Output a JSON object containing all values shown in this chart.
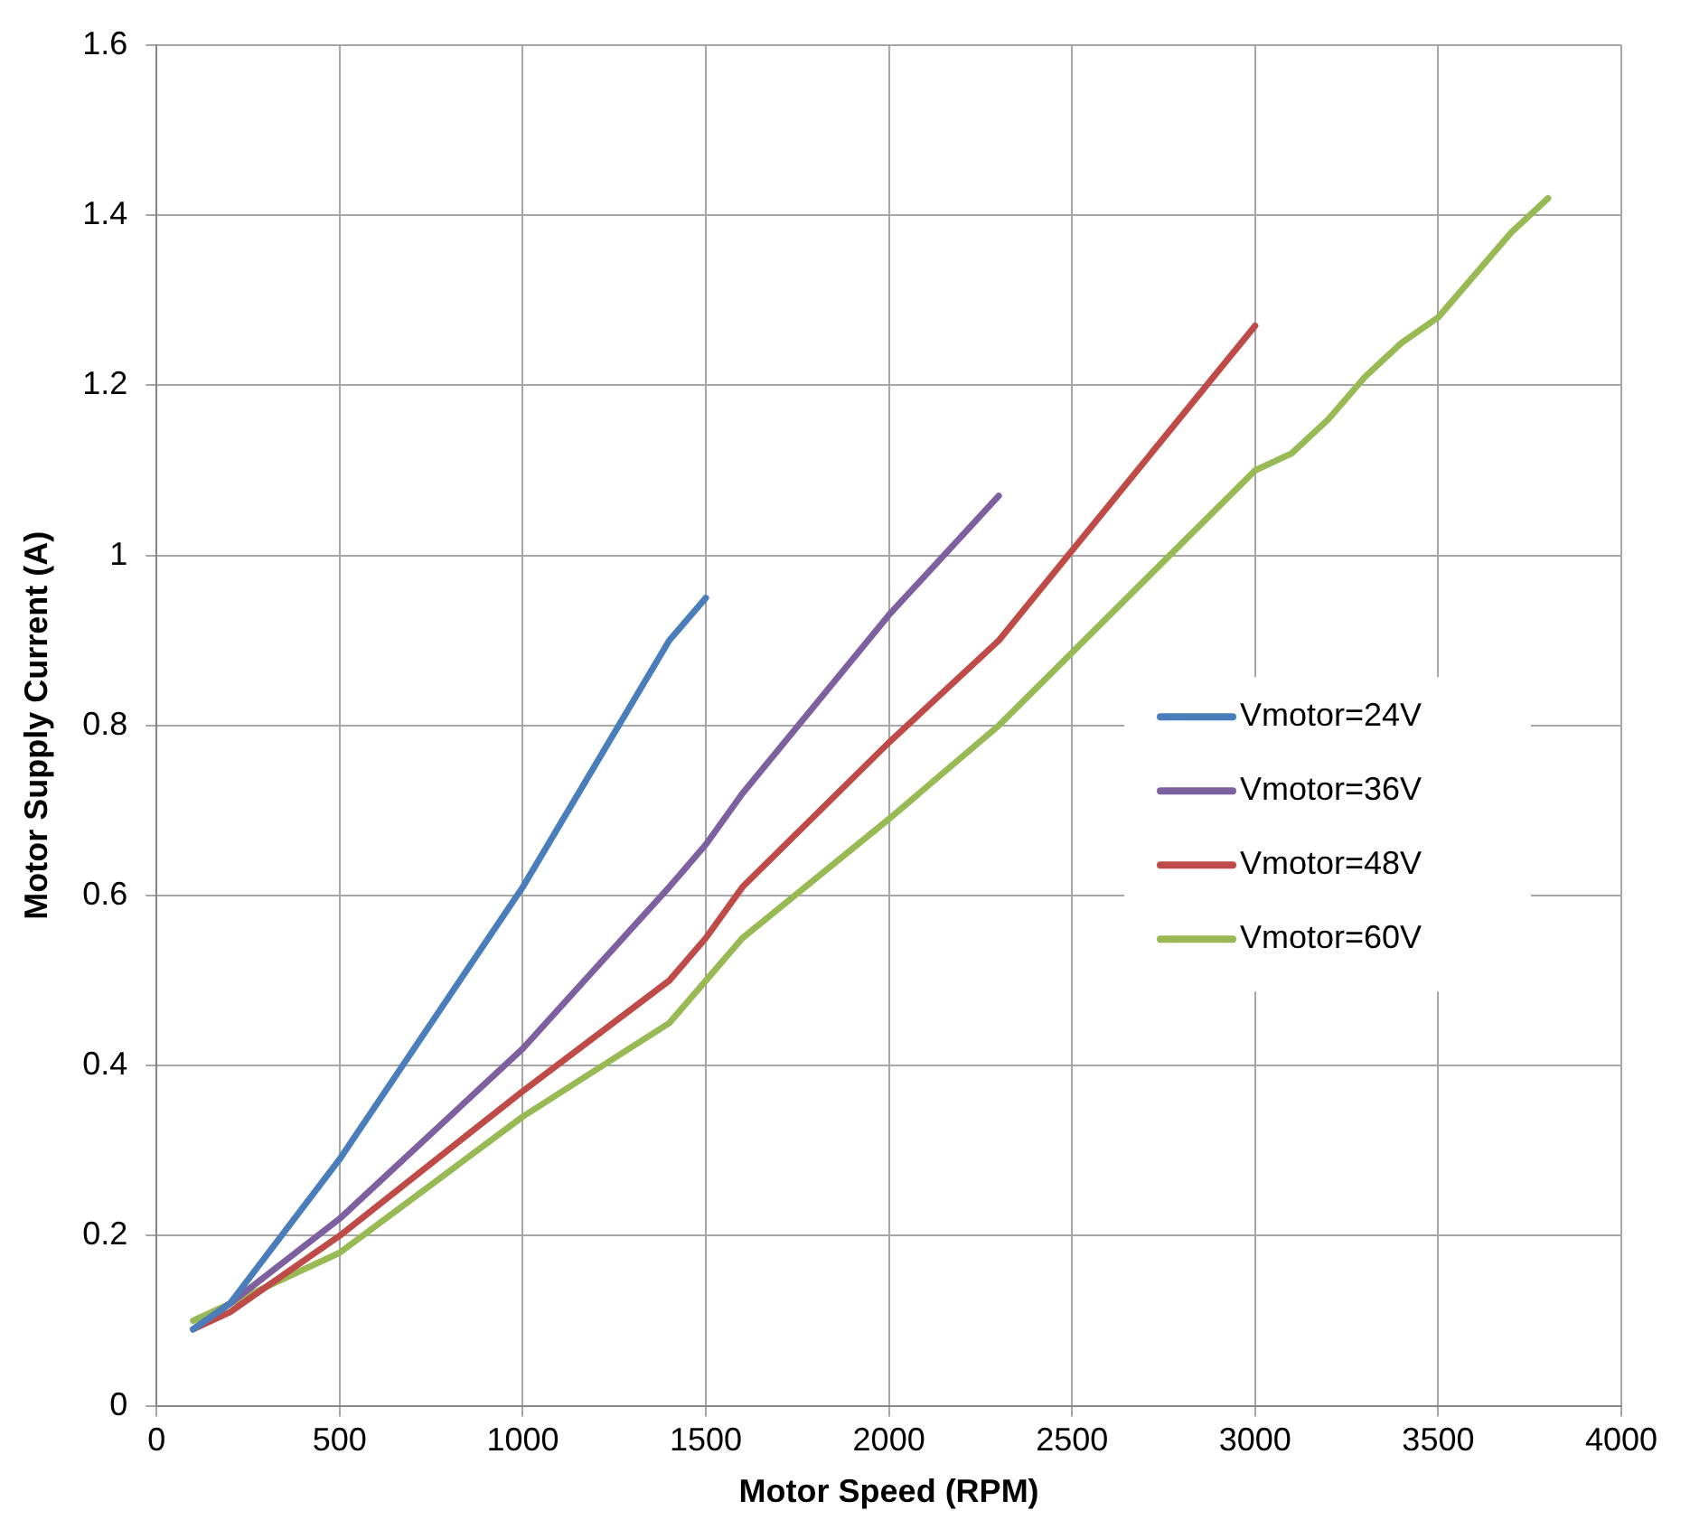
{
  "chart_data": {
    "type": "line",
    "xlabel": "Motor Speed (RPM)",
    "ylabel": "Motor Supply Current (A)",
    "xlim": [
      0,
      4000
    ],
    "xticks": [
      0,
      500,
      1000,
      1500,
      2000,
      2500,
      3000,
      3500,
      4000
    ],
    "ylim": [
      0,
      1.6
    ],
    "yticks": [
      0,
      0.2,
      0.4,
      0.6,
      0.8,
      1,
      1.2,
      1.4,
      1.6
    ],
    "grid": true,
    "legend": "right",
    "marker": "none",
    "line_style": "solid",
    "series": [
      {
        "name": "Vmotor=24V",
        "color": "#4a7ebb",
        "x": [
          100,
          200,
          500,
          1000,
          1400,
          1500
        ],
        "values": [
          0.09,
          0.12,
          0.29,
          0.61,
          0.9,
          0.95
        ]
      },
      {
        "name": "Vmotor=36V",
        "color": "#7d60a0",
        "x": [
          100,
          200,
          500,
          1000,
          1400,
          1500,
          1600,
          2000,
          2300
        ],
        "values": [
          0.09,
          0.12,
          0.22,
          0.42,
          0.61,
          0.66,
          0.72,
          0.93,
          1.07
        ]
      },
      {
        "name": "Vmotor=48V",
        "color": "#be4b48",
        "x": [
          100,
          200,
          500,
          1000,
          1400,
          1500,
          1600,
          2000,
          2300,
          3000
        ],
        "values": [
          0.09,
          0.11,
          0.2,
          0.37,
          0.5,
          0.55,
          0.61,
          0.78,
          0.9,
          1.27
        ]
      },
      {
        "name": "Vmotor=60V",
        "color": "#98b954",
        "x": [
          100,
          200,
          300,
          500,
          1000,
          1400,
          1500,
          1600,
          2000,
          2300,
          3000,
          3100,
          3200,
          3300,
          3400,
          3500,
          3700,
          3800
        ],
        "values": [
          0.1,
          0.12,
          0.14,
          0.18,
          0.34,
          0.45,
          0.5,
          0.55,
          0.69,
          0.8,
          1.1,
          1.12,
          1.16,
          1.21,
          1.25,
          1.28,
          1.38,
          1.42
        ]
      }
    ]
  }
}
